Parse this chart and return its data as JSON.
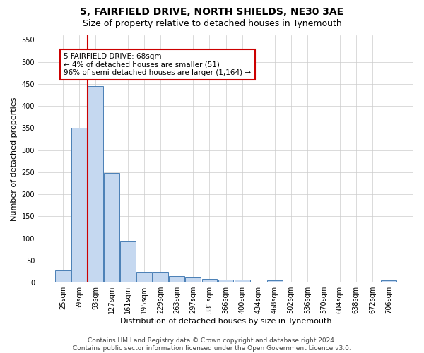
{
  "title": "5, FAIRFIELD DRIVE, NORTH SHIELDS, NE30 3AE",
  "subtitle": "Size of property relative to detached houses in Tynemouth",
  "xlabel": "Distribution of detached houses by size in Tynemouth",
  "ylabel": "Number of detached properties",
  "categories": [
    "25sqm",
    "59sqm",
    "93sqm",
    "127sqm",
    "161sqm",
    "195sqm",
    "229sqm",
    "263sqm",
    "297sqm",
    "331sqm",
    "366sqm",
    "400sqm",
    "434sqm",
    "468sqm",
    "502sqm",
    "536sqm",
    "570sqm",
    "604sqm",
    "638sqm",
    "672sqm",
    "706sqm"
  ],
  "values": [
    27,
    350,
    445,
    248,
    93,
    25,
    25,
    14,
    12,
    8,
    6,
    6,
    0,
    5,
    0,
    0,
    0,
    0,
    0,
    0,
    5
  ],
  "bar_color": "#c5d8f0",
  "bar_edge_color": "#4a7fb5",
  "property_line_x": 1.5,
  "property_line_color": "#cc0000",
  "annotation_text": "5 FAIRFIELD DRIVE: 68sqm\n← 4% of detached houses are smaller (51)\n96% of semi-detached houses are larger (1,164) →",
  "annotation_box_color": "#ffffff",
  "annotation_box_edge": "#cc0000",
  "ylim": [
    0,
    560
  ],
  "yticks": [
    0,
    50,
    100,
    150,
    200,
    250,
    300,
    350,
    400,
    450,
    500,
    550
  ],
  "footer": "Contains HM Land Registry data © Crown copyright and database right 2024.\nContains public sector information licensed under the Open Government Licence v3.0.",
  "background_color": "#ffffff",
  "grid_color": "#cccccc",
  "title_fontsize": 10,
  "subtitle_fontsize": 9,
  "axis_label_fontsize": 8,
  "tick_fontsize": 7,
  "annotation_fontsize": 7.5,
  "footer_fontsize": 6.5
}
